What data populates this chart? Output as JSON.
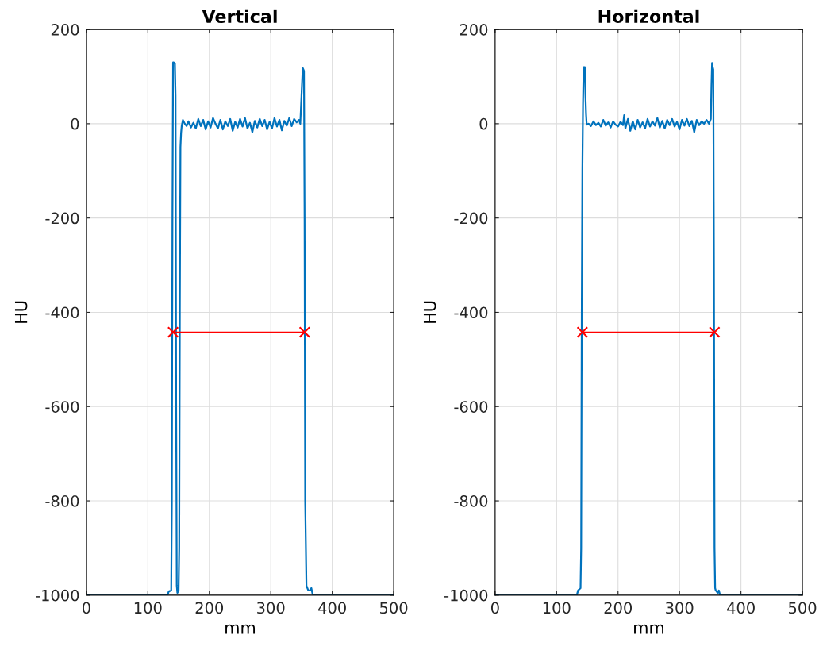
{
  "chart_data": [
    {
      "type": "line",
      "title": "Vertical",
      "xlabel": "mm",
      "ylabel": "HU",
      "xlim": [
        0,
        500
      ],
      "ylim": [
        -1000,
        200
      ],
      "xticks": [
        0,
        100,
        200,
        300,
        400,
        500
      ],
      "yticks": [
        -1000,
        -800,
        -600,
        -400,
        -200,
        0,
        200
      ],
      "grid": true,
      "series": [
        {
          "color": "#0072bd",
          "marker": "none",
          "x": [
            0,
            132,
            134,
            138,
            139,
            140,
            141,
            142,
            144,
            145,
            146,
            147,
            148,
            150,
            151,
            152,
            153,
            154,
            155,
            157,
            160,
            163,
            166,
            170,
            174,
            178,
            182,
            186,
            190,
            194,
            198,
            202,
            206,
            210,
            214,
            218,
            222,
            226,
            230,
            234,
            238,
            242,
            246,
            250,
            254,
            258,
            262,
            266,
            270,
            274,
            278,
            282,
            286,
            290,
            294,
            298,
            302,
            306,
            310,
            314,
            318,
            322,
            326,
            330,
            334,
            338,
            342,
            346,
            348,
            350,
            352,
            353,
            354,
            355,
            356,
            358,
            361,
            364,
            366,
            368,
            369,
            500
          ],
          "values": [
            -1000,
            -1000,
            -992,
            -990,
            -800,
            -200,
            130,
            130,
            128,
            60,
            -600,
            -980,
            -995,
            -990,
            -900,
            -400,
            -50,
            -20,
            -5,
            8,
            0,
            -5,
            5,
            -8,
            2,
            -10,
            10,
            -5,
            8,
            -12,
            5,
            -8,
            12,
            0,
            -10,
            8,
            -12,
            5,
            -5,
            10,
            -15,
            4,
            -8,
            10,
            -6,
            12,
            -10,
            2,
            -18,
            6,
            -8,
            10,
            -5,
            8,
            -12,
            4,
            -10,
            12,
            -6,
            8,
            -14,
            6,
            -4,
            12,
            -5,
            10,
            3,
            8,
            0,
            60,
            118,
            115,
            112,
            -200,
            -800,
            -980,
            -990,
            -990,
            -985,
            -998,
            -1000,
            -1000
          ]
        },
        {
          "color": "#ff0000",
          "marker": "cross",
          "x": [
            141,
            355
          ],
          "values": [
            -442,
            -442
          ]
        }
      ]
    },
    {
      "type": "line",
      "title": "Horizontal",
      "xlabel": "mm",
      "ylabel": "HU",
      "xlim": [
        0,
        500
      ],
      "ylim": [
        -1000,
        200
      ],
      "xticks": [
        0,
        100,
        200,
        300,
        400,
        500
      ],
      "yticks": [
        -1000,
        -800,
        -600,
        -400,
        -200,
        0,
        200
      ],
      "grid": true,
      "series": [
        {
          "color": "#0072bd",
          "marker": "none",
          "x": [
            0,
            133,
            135,
            139,
            140,
            141,
            142,
            143,
            144,
            146,
            147,
            148,
            149,
            152,
            156,
            160,
            164,
            168,
            172,
            176,
            180,
            184,
            188,
            192,
            196,
            200,
            204,
            208,
            210,
            212,
            216,
            220,
            224,
            228,
            232,
            236,
            240,
            244,
            248,
            252,
            256,
            260,
            264,
            268,
            272,
            276,
            280,
            284,
            288,
            292,
            296,
            300,
            304,
            308,
            312,
            316,
            320,
            324,
            328,
            332,
            336,
            340,
            344,
            348,
            351,
            352,
            353,
            354,
            355,
            356,
            357,
            358,
            359,
            362,
            364,
            366,
            368,
            500
          ],
          "values": [
            -1000,
            -1000,
            -990,
            -985,
            -900,
            -400,
            -100,
            40,
            120,
            120,
            60,
            20,
            -2,
            0,
            -5,
            5,
            -3,
            2,
            -6,
            8,
            -4,
            3,
            -8,
            5,
            -2,
            -6,
            4,
            -3,
            18,
            -10,
            10,
            -15,
            5,
            -12,
            8,
            -8,
            3,
            -10,
            10,
            -6,
            5,
            -4,
            12,
            -8,
            6,
            -10,
            8,
            -3,
            10,
            -6,
            4,
            -12,
            8,
            -4,
            10,
            -5,
            6,
            -18,
            8,
            -3,
            5,
            0,
            8,
            0,
            10,
            80,
            129,
            120,
            115,
            -300,
            -900,
            -985,
            -990,
            -995,
            -990,
            -1000,
            -1000,
            -1000
          ]
        },
        {
          "color": "#ff0000",
          "marker": "cross",
          "x": [
            142,
            357
          ],
          "values": [
            -442,
            -442
          ]
        }
      ]
    }
  ]
}
